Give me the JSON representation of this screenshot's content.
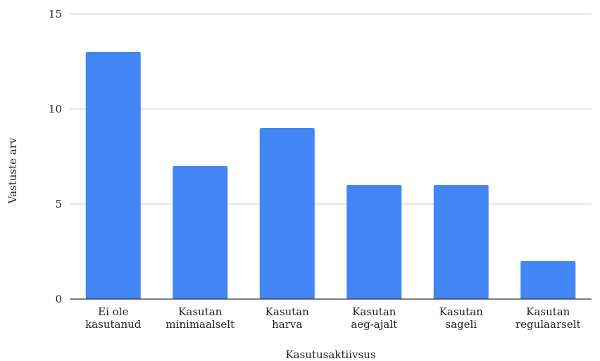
{
  "chart_data": {
    "type": "bar",
    "title": "",
    "xlabel": "Kasutusaktiivsus",
    "ylabel": "Vastuste arv",
    "categories": [
      [
        "Ei ole",
        "kasutanud"
      ],
      [
        "Kasutan",
        "minimaalselt"
      ],
      [
        "Kasutan",
        "harva"
      ],
      [
        "Kasutan",
        "aeg-ajalt"
      ],
      [
        "Kasutan",
        "sageli"
      ],
      [
        "Kasutan",
        "regulaarselt"
      ]
    ],
    "values": [
      13,
      7,
      9,
      6,
      6,
      2
    ],
    "ylim": [
      0,
      15
    ],
    "yticks": [
      0,
      5,
      10,
      15
    ],
    "grid": true,
    "bar_color": "#4285f4",
    "gridline_color": "#cccccc",
    "axis_color": "#333333"
  }
}
